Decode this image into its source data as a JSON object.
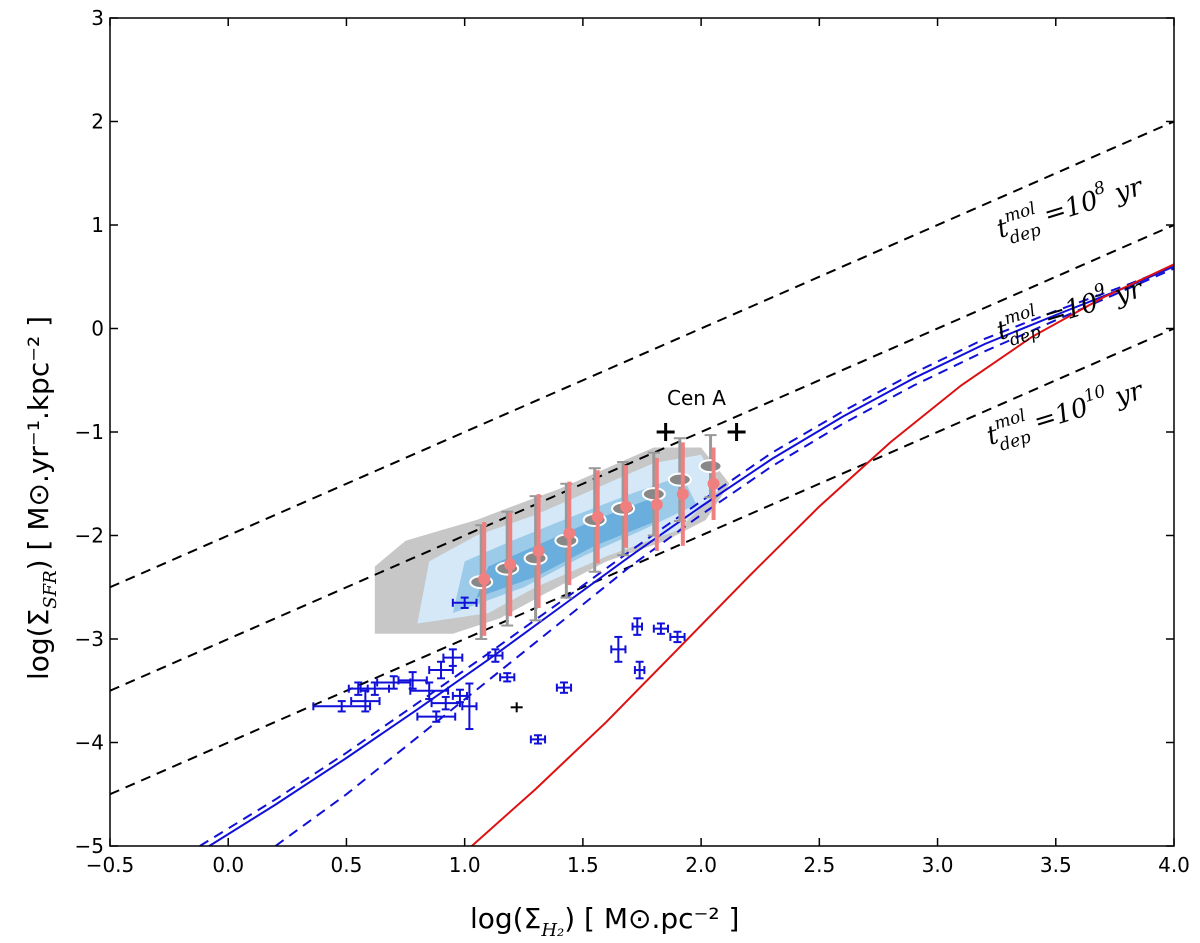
{
  "chart_data": {
    "type": "scatter",
    "xlabel": "log(Σ",
    "xlabel_sub": "H₂",
    "xlabel_units": ") [ M⊙.pc⁻² ]",
    "ylabel": "log(Σ",
    "ylabel_sub": "SFR",
    "ylabel_units": ") [ M⊙.yr⁻¹.kpc⁻² ]",
    "xlim": [
      -0.5,
      4.0
    ],
    "ylim": [
      -5,
      3
    ],
    "x_ticks": [
      -0.5,
      0.0,
      0.5,
      1.0,
      1.5,
      2.0,
      2.5,
      3.0,
      3.5,
      4.0
    ],
    "x_tick_labels": [
      "−0.5",
      "0.0",
      "0.5",
      "1.0",
      "1.5",
      "2.0",
      "2.5",
      "3.0",
      "3.5",
      "4.0"
    ],
    "y_ticks": [
      -5,
      -4,
      -3,
      -2,
      -1,
      0,
      1,
      2,
      3
    ],
    "y_tick_labels": [
      "−5",
      "−4",
      "−3",
      "−2",
      "−1",
      "0",
      "1",
      "2",
      "3"
    ],
    "depletion_lines": [
      {
        "name": "t_dep = 10^8 yr",
        "offset": -2,
        "label_base": "t",
        "label_sup": "mol",
        "label_sub": "dep",
        "label_eq": " =10",
        "label_exp": "8",
        "label_unit": " yr"
      },
      {
        "name": "t_dep = 10^9 yr",
        "offset": -3,
        "label_base": "t",
        "label_sup": "mol",
        "label_sub": "dep",
        "label_eq": " =10",
        "label_exp": "9",
        "label_unit": " yr"
      },
      {
        "name": "t_dep = 10^10 yr",
        "offset": -4,
        "label_base": "t",
        "label_sup": "mol",
        "label_sub": "dep",
        "label_eq": " =10",
        "label_exp": "10",
        "label_unit": " yr"
      }
    ],
    "annotation": "Cen A",
    "cen_a_points": [
      {
        "x": 1.85,
        "y": -1.0
      },
      {
        "x": 2.15,
        "y": -1.0
      }
    ],
    "binned_mean": [
      {
        "x": 1.07,
        "y": -2.42,
        "err": 0.55
      },
      {
        "x": 1.18,
        "y": -2.28,
        "err": 0.5
      },
      {
        "x": 1.3,
        "y": -2.15,
        "err": 0.55
      },
      {
        "x": 1.43,
        "y": -1.98,
        "err": 0.5
      },
      {
        "x": 1.55,
        "y": -1.82,
        "err": 0.45
      },
      {
        "x": 1.67,
        "y": -1.72,
        "err": 0.4
      },
      {
        "x": 1.8,
        "y": -1.7,
        "err": 0.45
      },
      {
        "x": 1.91,
        "y": -1.6,
        "err": 0.5
      },
      {
        "x": 2.04,
        "y": -1.5,
        "err": 0.35
      }
    ],
    "binned_median": [
      {
        "x": 1.07,
        "y": -2.45,
        "err": 0.55
      },
      {
        "x": 1.18,
        "y": -2.32,
        "err": 0.55
      },
      {
        "x": 1.3,
        "y": -2.22,
        "err": 0.6
      },
      {
        "x": 1.43,
        "y": -2.05,
        "err": 0.55
      },
      {
        "x": 1.55,
        "y": -1.85,
        "err": 0.5
      },
      {
        "x": 1.67,
        "y": -1.74,
        "err": 0.45
      },
      {
        "x": 1.8,
        "y": -1.6,
        "err": 0.4
      },
      {
        "x": 1.91,
        "y": -1.46,
        "err": 0.4
      },
      {
        "x": 2.04,
        "y": -1.33,
        "err": 0.3
      }
    ],
    "blue_points": [
      {
        "x": 1.0,
        "y": -2.65,
        "xerr": 0.05,
        "yerr": 0.05
      },
      {
        "x": 0.55,
        "y": -3.48,
        "xerr": 0.04,
        "yerr": 0.06
      },
      {
        "x": 0.62,
        "y": -3.48,
        "xerr": 0.06,
        "yerr": 0.06
      },
      {
        "x": 0.58,
        "y": -3.6,
        "xerr": 0.06,
        "yerr": 0.1
      },
      {
        "x": 0.48,
        "y": -3.65,
        "xerr": 0.12,
        "yerr": 0.05
      },
      {
        "x": 0.7,
        "y": -3.42,
        "xerr": 0.07,
        "yerr": 0.06
      },
      {
        "x": 0.78,
        "y": -3.4,
        "xerr": 0.06,
        "yerr": 0.08
      },
      {
        "x": 0.85,
        "y": -3.5,
        "xerr": 0.08,
        "yerr": 0.08
      },
      {
        "x": 0.9,
        "y": -3.3,
        "xerr": 0.05,
        "yerr": 0.08
      },
      {
        "x": 0.95,
        "y": -3.18,
        "xerr": 0.04,
        "yerr": 0.08
      },
      {
        "x": 0.92,
        "y": -3.62,
        "xerr": 0.06,
        "yerr": 0.06
      },
      {
        "x": 0.88,
        "y": -3.75,
        "xerr": 0.08,
        "yerr": 0.05
      },
      {
        "x": 0.98,
        "y": -3.55,
        "xerr": 0.03,
        "yerr": 0.06
      },
      {
        "x": 1.02,
        "y": -3.65,
        "xerr": 0.03,
        "yerr": 0.22
      },
      {
        "x": 1.13,
        "y": -3.16,
        "xerr": 0.03,
        "yerr": 0.06
      },
      {
        "x": 1.18,
        "y": -3.37,
        "xerr": 0.03,
        "yerr": 0.04
      },
      {
        "x": 1.31,
        "y": -3.97,
        "xerr": 0.03,
        "yerr": 0.04
      },
      {
        "x": 1.42,
        "y": -3.47,
        "xerr": 0.03,
        "yerr": 0.05
      },
      {
        "x": 1.65,
        "y": -3.1,
        "xerr": 0.03,
        "yerr": 0.12
      },
      {
        "x": 1.73,
        "y": -2.88,
        "xerr": 0.02,
        "yerr": 0.08
      },
      {
        "x": 1.74,
        "y": -3.3,
        "xerr": 0.02,
        "yerr": 0.08
      },
      {
        "x": 1.83,
        "y": -2.9,
        "xerr": 0.03,
        "yerr": 0.05
      },
      {
        "x": 1.9,
        "y": -2.98,
        "xerr": 0.03,
        "yerr": 0.05
      }
    ],
    "black_small_point": {
      "x": 1.22,
      "y": -3.66
    },
    "model_fit_curve": [
      [
        -0.08,
        -5.0
      ],
      [
        0.2,
        -4.6
      ],
      [
        0.5,
        -4.15
      ],
      [
        0.8,
        -3.68
      ],
      [
        1.1,
        -3.2
      ],
      [
        1.4,
        -2.7
      ],
      [
        1.7,
        -2.2
      ],
      [
        2.0,
        -1.72
      ],
      [
        2.3,
        -1.26
      ],
      [
        2.6,
        -0.85
      ],
      [
        2.9,
        -0.48
      ],
      [
        3.2,
        -0.15
      ],
      [
        3.5,
        0.13
      ],
      [
        3.8,
        0.4
      ],
      [
        4.0,
        0.6
      ]
    ],
    "model_upper_dashed": [
      [
        -0.12,
        -5.0
      ],
      [
        0.2,
        -4.55
      ],
      [
        0.5,
        -4.1
      ],
      [
        0.8,
        -3.62
      ],
      [
        1.1,
        -3.14
      ],
      [
        1.4,
        -2.65
      ],
      [
        1.7,
        -2.15
      ],
      [
        2.0,
        -1.67
      ],
      [
        2.3,
        -1.2
      ],
      [
        2.6,
        -0.8
      ],
      [
        2.9,
        -0.43
      ],
      [
        3.2,
        -0.1
      ],
      [
        3.5,
        0.17
      ],
      [
        3.8,
        0.42
      ],
      [
        4.0,
        0.6
      ]
    ],
    "model_lower_dashed": [
      [
        0.2,
        -5.0
      ],
      [
        0.5,
        -4.5
      ],
      [
        0.8,
        -3.95
      ],
      [
        1.1,
        -3.4
      ],
      [
        1.4,
        -2.85
      ],
      [
        1.7,
        -2.3
      ],
      [
        2.0,
        -1.8
      ],
      [
        2.3,
        -1.33
      ],
      [
        2.6,
        -0.92
      ],
      [
        2.9,
        -0.55
      ],
      [
        3.2,
        -0.22
      ],
      [
        3.5,
        0.08
      ],
      [
        3.8,
        0.38
      ],
      [
        4.0,
        0.58
      ]
    ],
    "red_curve": [
      [
        1.03,
        -5.0
      ],
      [
        1.3,
        -4.45
      ],
      [
        1.6,
        -3.8
      ],
      [
        1.9,
        -3.1
      ],
      [
        2.2,
        -2.4
      ],
      [
        2.5,
        -1.72
      ],
      [
        2.8,
        -1.1
      ],
      [
        3.1,
        -0.55
      ],
      [
        3.4,
        -0.08
      ],
      [
        3.7,
        0.3
      ],
      [
        4.0,
        0.62
      ]
    ],
    "colors": {
      "blue": "#1010d8",
      "red": "#dd1111",
      "salmon": "#f08080",
      "grey": "#999999",
      "contour_light": "#d4e8f7",
      "contour_mid": "#9ccbea",
      "contour_dark": "#6aaedd"
    }
  }
}
